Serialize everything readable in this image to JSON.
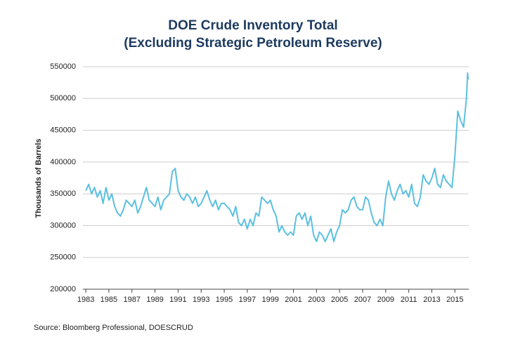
{
  "chart_data": {
    "type": "line",
    "title": [
      "DOE Crude Inventory Total",
      "(Excluding Strategic Petroleum Reserve)"
    ],
    "y_label": "Thousands of Barrels",
    "source": "Source: Bloomberg Professional, DOESCRUD",
    "xlim": [
      1982.75,
      2016.2
    ],
    "xticks": [
      1983,
      1985,
      1987,
      1989,
      1991,
      1993,
      1995,
      1997,
      1999,
      2001,
      2003,
      2005,
      2007,
      2009,
      2011,
      2013,
      2015
    ],
    "ylim": [
      200000,
      550000
    ],
    "yticks": [
      200000,
      250000,
      300000,
      350000,
      400000,
      450000,
      500000,
      550000
    ],
    "grid": true,
    "x": [
      1983,
      1983.25,
      1983.5,
      1983.75,
      1984,
      1984.25,
      1984.5,
      1984.75,
      1985,
      1985.25,
      1985.5,
      1985.75,
      1986,
      1986.25,
      1986.5,
      1986.75,
      1987,
      1987.25,
      1987.5,
      1987.75,
      1988,
      1988.25,
      1988.5,
      1988.75,
      1989,
      1989.25,
      1989.5,
      1989.75,
      1990,
      1990.25,
      1990.5,
      1990.75,
      1991,
      1991.25,
      1991.5,
      1991.75,
      1992,
      1992.25,
      1992.5,
      1992.75,
      1993,
      1993.25,
      1993.5,
      1993.75,
      1994,
      1994.25,
      1994.5,
      1994.75,
      1995,
      1995.25,
      1995.5,
      1995.75,
      1996,
      1996.25,
      1996.5,
      1996.75,
      1997,
      1997.25,
      1997.5,
      1997.75,
      1998,
      1998.25,
      1998.5,
      1998.75,
      1999,
      1999.25,
      1999.5,
      1999.75,
      2000,
      2000.25,
      2000.5,
      2000.75,
      2001,
      2001.25,
      2001.5,
      2001.75,
      2002,
      2002.25,
      2002.5,
      2002.75,
      2003,
      2003.25,
      2003.5,
      2003.75,
      2004,
      2004.25,
      2004.5,
      2004.75,
      2005,
      2005.25,
      2005.5,
      2005.75,
      2006,
      2006.25,
      2006.5,
      2006.75,
      2007,
      2007.25,
      2007.5,
      2007.75,
      2008,
      2008.25,
      2008.5,
      2008.75,
      2009,
      2009.25,
      2009.5,
      2009.75,
      2010,
      2010.25,
      2010.5,
      2010.75,
      2011,
      2011.25,
      2011.5,
      2011.75,
      2012,
      2012.25,
      2012.5,
      2012.75,
      2013,
      2013.25,
      2013.5,
      2013.75,
      2014,
      2014.25,
      2014.5,
      2014.75,
      2015,
      2015.25,
      2015.5,
      2015.75,
      2016,
      2016.1,
      2016.15
    ],
    "series": [
      {
        "color": "#5bc0e0",
        "values": [
          355000,
          365000,
          350000,
          360000,
          345000,
          355000,
          335000,
          360000,
          340000,
          350000,
          330000,
          320000,
          315000,
          325000,
          340000,
          335000,
          330000,
          340000,
          320000,
          330000,
          345000,
          360000,
          340000,
          335000,
          330000,
          345000,
          325000,
          340000,
          345000,
          350000,
          385000,
          390000,
          355000,
          345000,
          340000,
          350000,
          345000,
          335000,
          345000,
          330000,
          335000,
          345000,
          355000,
          340000,
          330000,
          340000,
          325000,
          335000,
          335000,
          330000,
          325000,
          315000,
          330000,
          305000,
          300000,
          310000,
          295000,
          310000,
          300000,
          320000,
          315000,
          345000,
          340000,
          335000,
          340000,
          325000,
          315000,
          290000,
          300000,
          290000,
          285000,
          290000,
          285000,
          315000,
          320000,
          310000,
          320000,
          300000,
          315000,
          285000,
          275000,
          290000,
          285000,
          275000,
          285000,
          295000,
          275000,
          290000,
          300000,
          325000,
          320000,
          325000,
          340000,
          345000,
          330000,
          325000,
          325000,
          345000,
          340000,
          320000,
          305000,
          300000,
          310000,
          300000,
          345000,
          370000,
          350000,
          340000,
          355000,
          365000,
          350000,
          355000,
          345000,
          365000,
          335000,
          330000,
          345000,
          380000,
          370000,
          365000,
          375000,
          390000,
          365000,
          360000,
          380000,
          370000,
          365000,
          360000,
          410000,
          480000,
          465000,
          455000,
          500000,
          540000,
          530000
        ]
      }
    ]
  }
}
